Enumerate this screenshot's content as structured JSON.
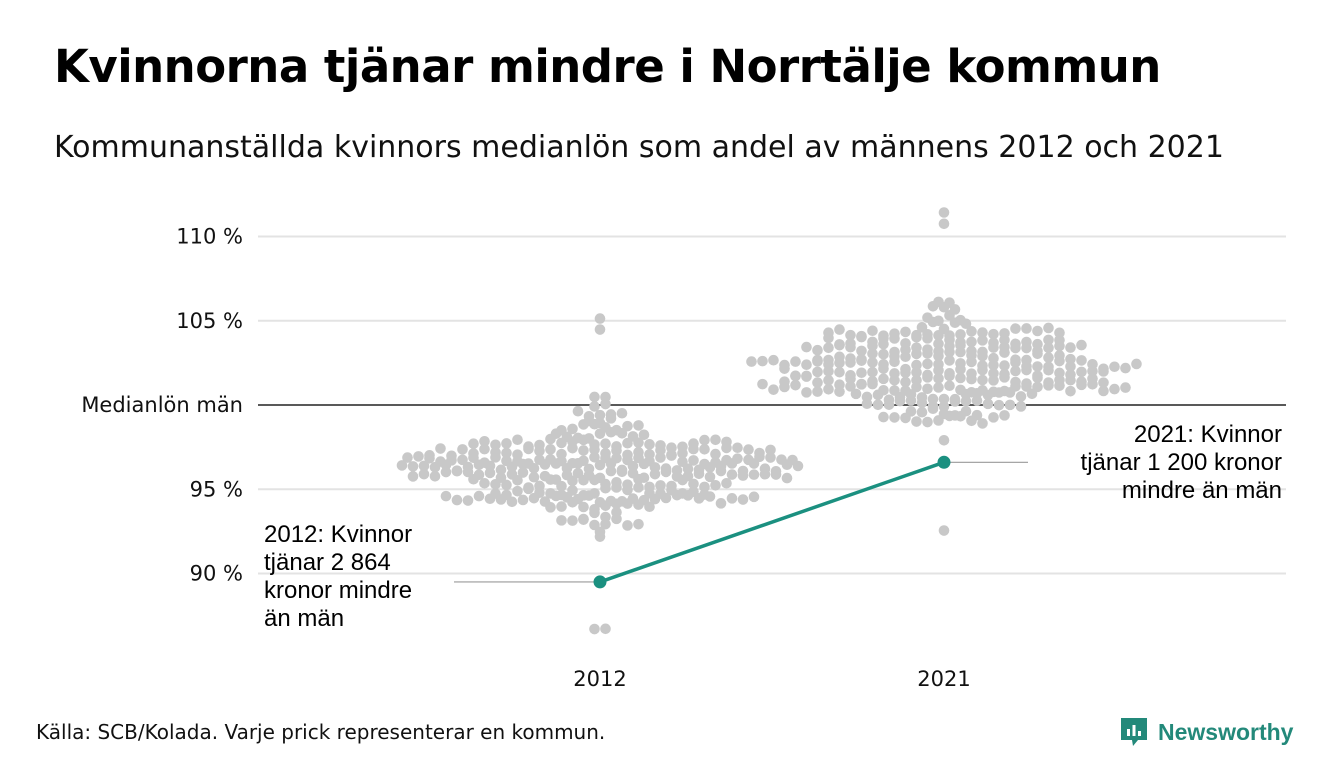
{
  "title": "Kvinnorna tjänar mindre i Norrtälje kommun",
  "subtitle": "Kommunanställda kvinnors medianlön som andel av männens 2012 och 2021",
  "source": "Källa: SCB/Kolada. Varje prick representerar en kommun.",
  "brand": {
    "name": "Newsworthy",
    "icon": "newsworthy-logo-icon",
    "color": "#23897a"
  },
  "colors": {
    "dots": "#c8c8c8",
    "highlight": "#1b9080",
    "grid": "#e3e3e3",
    "reference": "#222222"
  },
  "annotations": {
    "y2012": [
      "2012: Kvinnor",
      "tjänar 2 864",
      "kronor mindre",
      "än män"
    ],
    "y2021": [
      "2021: Kvinnor",
      "tjänar 1 200 kronor",
      "mindre än män"
    ]
  },
  "chart_data": {
    "type": "scatter",
    "subtype": "beeswarm",
    "categories": [
      "2012",
      "2021"
    ],
    "y_ticks": [
      {
        "value": 90,
        "label": "90 %"
      },
      {
        "value": 95,
        "label": "95 %"
      },
      {
        "value": 100,
        "label": "Medianlön män"
      },
      {
        "value": 105,
        "label": "105 %"
      },
      {
        "value": 110,
        "label": "110 %"
      }
    ],
    "ylim": [
      86.5,
      112
    ],
    "reference_line": 100,
    "highlight": {
      "name": "Norrtälje",
      "values": [
        {
          "x": "2012",
          "y": 89.5
        },
        {
          "x": "2021",
          "y": 96.6
        }
      ]
    },
    "distribution": [
      {
        "category": "2012",
        "min": 86.7,
        "max": 105.1,
        "median": 96.2,
        "outliers": [
          86.7
        ]
      },
      {
        "category": "2021",
        "min": 92.6,
        "max": 111.4,
        "median": 102.0,
        "outliers": []
      }
    ],
    "grid": true
  }
}
